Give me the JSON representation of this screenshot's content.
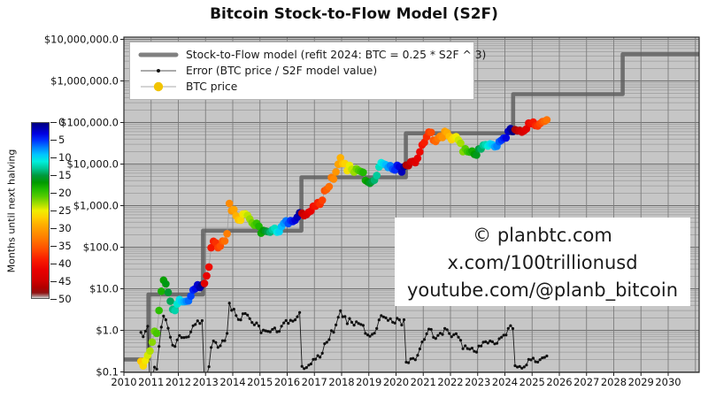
{
  "page": {
    "title": "Bitcoin Stock-to-Flow Model (S2F)"
  },
  "legend": {
    "items": [
      {
        "label": "Stock-to-Flow model (refit 2024:  BTC = 0.25 * S2F ^ 3)",
        "swatch": "thick-gray-line"
      },
      {
        "label": "Error (BTC price / S2F model value)",
        "swatch": "thin-black-line-dot"
      },
      {
        "label": "BTC price",
        "swatch": "gold-dot"
      }
    ]
  },
  "watermark": {
    "lines": [
      "© planbtc.com",
      "x.com/100trillionusd",
      "youtube.com/@planb_bitcoin"
    ]
  },
  "colorbar": {
    "title": "Months until next halving",
    "ticks": [
      0,
      5,
      10,
      15,
      20,
      25,
      30,
      35,
      40,
      45,
      50
    ]
  },
  "colors": {
    "plot_bg": "#c6c6c6",
    "grid_minor": "#9b9b9b",
    "grid_major": "#6f6f6f",
    "frame": "#2b2b2b",
    "model_line": "#5f5f5f",
    "error_line": "#1a1a1a",
    "price_connector": "#9a9a9a",
    "legend_gold": "#f2c400"
  },
  "chart_data": {
    "type": "scatter",
    "title": "Bitcoin Stock-to-Flow Model (S2F)",
    "xlabel": "",
    "ylabel": "",
    "x_axis": {
      "range": [
        2010,
        2031.15
      ],
      "ticks": [
        2010,
        2011,
        2012,
        2013,
        2014,
        2015,
        2016,
        2017,
        2018,
        2019,
        2020,
        2021,
        2022,
        2023,
        2024,
        2025,
        2026,
        2027,
        2028,
        2029,
        2030
      ]
    },
    "y_axis": {
      "scale": "log",
      "range": [
        0.1,
        12500000
      ],
      "tick_values": [
        10000000,
        1000000,
        100000,
        10000,
        1000,
        100,
        10,
        1,
        0.1
      ],
      "tick_labels": [
        "$10,000,000.0",
        "$1,000,000.0",
        "$100,000.0",
        "$10,000.0",
        "$1,000.0",
        "$100.0",
        "$10.0",
        "$1.0",
        "$0.1"
      ]
    },
    "halving_dates_decimal_years": [
      2012.908,
      2016.523,
      2020.362,
      2024.302,
      2028.33
    ],
    "colormap": {
      "label": "Months until next halving",
      "range": [
        0,
        50
      ],
      "stops": [
        [
          0,
          "#00007f"
        ],
        [
          3,
          "#0000e0"
        ],
        [
          5,
          "#0033ff"
        ],
        [
          7,
          "#0080ff"
        ],
        [
          9,
          "#00c4ff"
        ],
        [
          11,
          "#00eedd"
        ],
        [
          13,
          "#00c896"
        ],
        [
          15,
          "#00993d"
        ],
        [
          17,
          "#009900"
        ],
        [
          19,
          "#22bb00"
        ],
        [
          21,
          "#55cc00"
        ],
        [
          23,
          "#a0dd00"
        ],
        [
          25,
          "#f0ee00"
        ],
        [
          27,
          "#ffd000"
        ],
        [
          29,
          "#ffae00"
        ],
        [
          31,
          "#ff9400"
        ],
        [
          33,
          "#ff7a00"
        ],
        [
          36,
          "#ff4e00"
        ],
        [
          39,
          "#f91c00"
        ],
        [
          42,
          "#e80000"
        ],
        [
          45,
          "#d00000"
        ],
        [
          47,
          "#b00000"
        ],
        [
          48.5,
          "#8f1010"
        ],
        [
          49.4,
          "#a87878"
        ],
        [
          50,
          "#d8d8d8"
        ]
      ]
    },
    "series": [
      {
        "name": "Stock-to-Flow model (refit 2024:  BTC = 0.25 * S2F ^ 3)",
        "style": "step",
        "steps": [
          [
            2010.0,
            0.2
          ],
          [
            2010.9,
            7.3
          ],
          [
            2012.908,
            250
          ],
          [
            2016.523,
            4800
          ],
          [
            2020.362,
            55000
          ],
          [
            2024.302,
            480000
          ],
          [
            2028.33,
            4400000
          ]
        ],
        "end_year": 2031.15
      },
      {
        "name": "BTC price",
        "style": "scatter",
        "color_by": "months_until_next_halving",
        "points": [
          [
            2010.625,
            0.18
          ],
          [
            2010.708,
            0.14
          ],
          [
            2010.792,
            0.19
          ],
          [
            2010.875,
            0.25
          ],
          [
            2010.958,
            0.32
          ],
          [
            2011.042,
            0.52
          ],
          [
            2011.125,
            0.95
          ],
          [
            2011.208,
            0.85
          ],
          [
            2011.292,
            3.0
          ],
          [
            2011.375,
            8.7
          ],
          [
            2011.458,
            16.1
          ],
          [
            2011.542,
            13.1
          ],
          [
            2011.625,
            8.2
          ],
          [
            2011.708,
            5.0
          ],
          [
            2011.792,
            3.2
          ],
          [
            2011.875,
            3.0
          ],
          [
            2011.958,
            4.3
          ],
          [
            2012.042,
            5.5
          ],
          [
            2012.125,
            4.9
          ],
          [
            2012.208,
            4.9
          ],
          [
            2012.292,
            5.0
          ],
          [
            2012.375,
            5.1
          ],
          [
            2012.458,
            6.7
          ],
          [
            2012.542,
            9.4
          ],
          [
            2012.625,
            10.1
          ],
          [
            2012.708,
            12.4
          ],
          [
            2012.792,
            10.7
          ],
          [
            2012.875,
            12.5
          ],
          [
            2012.958,
            13.5
          ],
          [
            2013.042,
            20.4
          ],
          [
            2013.125,
            33.4
          ],
          [
            2013.208,
            97
          ],
          [
            2013.292,
            139
          ],
          [
            2013.375,
            128
          ],
          [
            2013.458,
            97
          ],
          [
            2013.542,
            106
          ],
          [
            2013.625,
            141
          ],
          [
            2013.708,
            141
          ],
          [
            2013.792,
            211
          ],
          [
            2013.875,
            1130
          ],
          [
            2013.958,
            757
          ],
          [
            2014.042,
            806
          ],
          [
            2014.125,
            566
          ],
          [
            2014.208,
            454
          ],
          [
            2014.292,
            446
          ],
          [
            2014.375,
            627
          ],
          [
            2014.458,
            635
          ],
          [
            2014.542,
            583
          ],
          [
            2014.625,
            479
          ],
          [
            2014.708,
            387
          ],
          [
            2014.792,
            338
          ],
          [
            2014.875,
            378
          ],
          [
            2014.958,
            320
          ],
          [
            2015.042,
            218
          ],
          [
            2015.125,
            254
          ],
          [
            2015.208,
            244
          ],
          [
            2015.292,
            236
          ],
          [
            2015.375,
            230
          ],
          [
            2015.458,
            263
          ],
          [
            2015.542,
            284
          ],
          [
            2015.625,
            230
          ],
          [
            2015.708,
            236
          ],
          [
            2015.792,
            314
          ],
          [
            2015.875,
            377
          ],
          [
            2015.958,
            430
          ],
          [
            2016.042,
            369
          ],
          [
            2016.125,
            437
          ],
          [
            2016.208,
            416
          ],
          [
            2016.292,
            448
          ],
          [
            2016.375,
            531
          ],
          [
            2016.458,
            673
          ],
          [
            2016.542,
            655
          ],
          [
            2016.625,
            575
          ],
          [
            2016.708,
            610
          ],
          [
            2016.792,
            701
          ],
          [
            2016.875,
            745
          ],
          [
            2016.958,
            964
          ],
          [
            2017.042,
            970
          ],
          [
            2017.125,
            1180
          ],
          [
            2017.208,
            1080
          ],
          [
            2017.292,
            1350
          ],
          [
            2017.375,
            2290
          ],
          [
            2017.458,
            2480
          ],
          [
            2017.542,
            2870
          ],
          [
            2017.625,
            4740
          ],
          [
            2017.708,
            4340
          ],
          [
            2017.792,
            6470
          ],
          [
            2017.875,
            9920
          ],
          [
            2017.958,
            14160
          ],
          [
            2018.042,
            10230
          ],
          [
            2018.125,
            10300
          ],
          [
            2018.208,
            6930
          ],
          [
            2018.292,
            9240
          ],
          [
            2018.375,
            7490
          ],
          [
            2018.458,
            6400
          ],
          [
            2018.542,
            7730
          ],
          [
            2018.625,
            7030
          ],
          [
            2018.708,
            6630
          ],
          [
            2018.792,
            6320
          ],
          [
            2018.875,
            4040
          ],
          [
            2018.958,
            3740
          ],
          [
            2019.042,
            3460
          ],
          [
            2019.125,
            3850
          ],
          [
            2019.208,
            4100
          ],
          [
            2019.292,
            5320
          ],
          [
            2019.375,
            8560
          ],
          [
            2019.458,
            10820
          ],
          [
            2019.542,
            10090
          ],
          [
            2019.625,
            9600
          ],
          [
            2019.708,
            8290
          ],
          [
            2019.792,
            9150
          ],
          [
            2019.875,
            7550
          ],
          [
            2019.958,
            7190
          ],
          [
            2020.042,
            9350
          ],
          [
            2020.125,
            8600
          ],
          [
            2020.208,
            6440
          ],
          [
            2020.292,
            8630
          ],
          [
            2020.375,
            9450
          ],
          [
            2020.458,
            9140
          ],
          [
            2020.542,
            11350
          ],
          [
            2020.625,
            11650
          ],
          [
            2020.708,
            10780
          ],
          [
            2020.792,
            13800
          ],
          [
            2020.875,
            19700
          ],
          [
            2020.958,
            29000
          ],
          [
            2021.042,
            33100
          ],
          [
            2021.125,
            45200
          ],
          [
            2021.208,
            58800
          ],
          [
            2021.292,
            57800
          ],
          [
            2021.375,
            37300
          ],
          [
            2021.458,
            35000
          ],
          [
            2021.542,
            41600
          ],
          [
            2021.625,
            47100
          ],
          [
            2021.708,
            43800
          ],
          [
            2021.792,
            61300
          ],
          [
            2021.875,
            57000
          ],
          [
            2021.958,
            46200
          ],
          [
            2022.042,
            38500
          ],
          [
            2022.125,
            43200
          ],
          [
            2022.208,
            45500
          ],
          [
            2022.292,
            37700
          ],
          [
            2022.375,
            31800
          ],
          [
            2022.458,
            19900
          ],
          [
            2022.542,
            23300
          ],
          [
            2022.625,
            20000
          ],
          [
            2022.708,
            19400
          ],
          [
            2022.792,
            20500
          ],
          [
            2022.875,
            17200
          ],
          [
            2022.958,
            16500
          ],
          [
            2023.042,
            23100
          ],
          [
            2023.125,
            23100
          ],
          [
            2023.208,
            28500
          ],
          [
            2023.292,
            29200
          ],
          [
            2023.375,
            27200
          ],
          [
            2023.458,
            30500
          ],
          [
            2023.542,
            29200
          ],
          [
            2023.625,
            26000
          ],
          [
            2023.708,
            26900
          ],
          [
            2023.792,
            34500
          ],
          [
            2023.875,
            37700
          ],
          [
            2023.958,
            42300
          ],
          [
            2024.042,
            42600
          ],
          [
            2024.125,
            61200
          ],
          [
            2024.208,
            71300
          ],
          [
            2024.292,
            60600
          ],
          [
            2024.375,
            67500
          ],
          [
            2024.458,
            62700
          ],
          [
            2024.542,
            64600
          ],
          [
            2024.625,
            59000
          ],
          [
            2024.708,
            63300
          ],
          [
            2024.792,
            70200
          ],
          [
            2024.875,
            96400
          ],
          [
            2024.958,
            93400
          ],
          [
            2025.042,
            102400
          ],
          [
            2025.125,
            84400
          ],
          [
            2025.208,
            82500
          ],
          [
            2025.292,
            94200
          ],
          [
            2025.375,
            104600
          ],
          [
            2025.458,
            107100
          ],
          [
            2025.542,
            115800
          ]
        ]
      },
      {
        "name": "Error (BTC price / S2F model value)",
        "style": "line+dot",
        "derived": "btc_price / s2f_model_value"
      }
    ]
  }
}
